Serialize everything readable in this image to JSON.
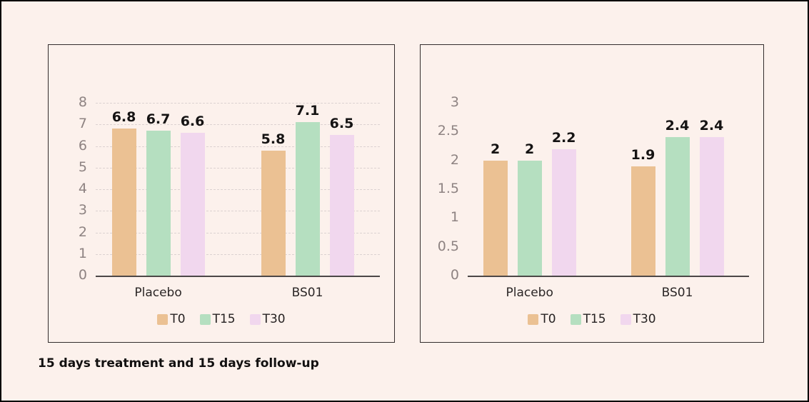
{
  "figure": {
    "caption": "15 days treatment and 15 days follow-up"
  },
  "colors": {
    "background": "#FCF1EC",
    "outer_border": "#000000",
    "panel_border": "#332D2D",
    "gridline": "#DCD2D1",
    "axis_line": "#4C4747",
    "tick_label": "#8E8382",
    "category_label": "#2B2626",
    "data_label": "#151313",
    "series_t0": "#EBC193",
    "series_t15": "#B5DFC0",
    "series_t30": "#F1D7EE"
  },
  "chart_data": [
    {
      "type": "bar",
      "title": "",
      "xlabel": "",
      "ylabel": "",
      "categories": [
        "Placebo",
        "BS01"
      ],
      "series": [
        {
          "name": "T0",
          "color": "#EBC193",
          "values": [
            6.8,
            5.8
          ],
          "labels": [
            "6.8",
            "5.8"
          ]
        },
        {
          "name": "T15",
          "color": "#B5DFC0",
          "values": [
            6.7,
            7.1
          ],
          "labels": [
            "6.7",
            "7.1"
          ]
        },
        {
          "name": "T30",
          "color": "#F1D7EE",
          "values": [
            6.6,
            6.5
          ],
          "labels": [
            "6.6",
            "6.5"
          ]
        }
      ],
      "ylim": [
        0,
        8
      ],
      "y_ticks": [
        0,
        1,
        2,
        3,
        4,
        5,
        6,
        7,
        8
      ],
      "gridlines": true,
      "legend_position": "bottom"
    },
    {
      "type": "bar",
      "title": "",
      "xlabel": "",
      "ylabel": "",
      "categories": [
        "Placebo",
        "BS01"
      ],
      "series": [
        {
          "name": "T0",
          "color": "#EBC193",
          "values": [
            2,
            1.9
          ],
          "labels": [
            "2",
            "1.9"
          ]
        },
        {
          "name": "T15",
          "color": "#B5DFC0",
          "values": [
            2,
            2.4
          ],
          "labels": [
            "2",
            "2.4"
          ]
        },
        {
          "name": "T30",
          "color": "#F1D7EE",
          "values": [
            2.2,
            2.4
          ],
          "labels": [
            "2.2",
            "2.4"
          ]
        }
      ],
      "ylim": [
        0,
        3
      ],
      "y_ticks": [
        0,
        0.5,
        1,
        1.5,
        2,
        2.5,
        3
      ],
      "gridlines": false,
      "legend_position": "bottom"
    }
  ]
}
